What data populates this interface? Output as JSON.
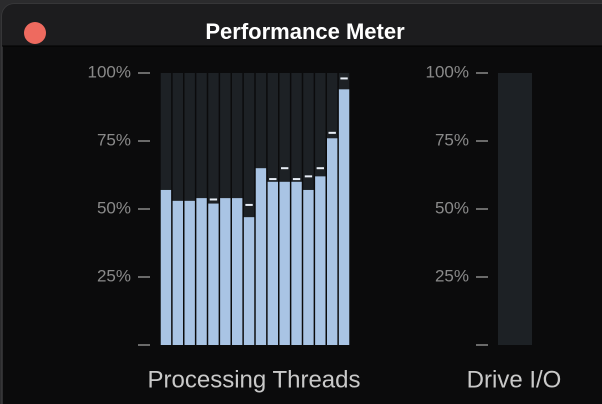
{
  "window": {
    "title": "Performance Meter"
  },
  "chart_data": [
    {
      "type": "bar",
      "xlabel": "Processing Threads",
      "categories": [
        null,
        null,
        null,
        null,
        null,
        null,
        null,
        null,
        null,
        null,
        null,
        null,
        null,
        null,
        null,
        null
      ],
      "values": [
        57,
        53,
        53,
        54,
        52,
        54,
        54,
        47,
        65,
        60,
        60,
        60,
        57,
        62,
        76,
        94
      ],
      "peak_values": [
        null,
        null,
        null,
        null,
        53.5,
        null,
        null,
        51.5,
        null,
        61,
        65,
        61,
        62,
        65,
        78,
        98
      ],
      "color": "#a9c4e4",
      "track_color": "#1d2125",
      "peak_color": "#e8eef6",
      "ylim": [
        0,
        100
      ],
      "yticks": [
        {
          "value": 25,
          "label": "25%"
        },
        {
          "value": 50,
          "label": "50%"
        },
        {
          "value": 75,
          "label": "75%"
        },
        {
          "value": 100,
          "label": "100%"
        }
      ]
    },
    {
      "type": "bar",
      "xlabel": "Drive I/O",
      "categories": [
        null
      ],
      "values": [
        0
      ],
      "color": "#a9c4e4",
      "track_color": "#1d2125",
      "ylim": [
        0,
        100
      ],
      "yticks": [
        {
          "value": 25,
          "label": "25%"
        },
        {
          "value": 50,
          "label": "50%"
        },
        {
          "value": 75,
          "label": "75%"
        },
        {
          "value": 100,
          "label": "100%"
        }
      ]
    }
  ]
}
